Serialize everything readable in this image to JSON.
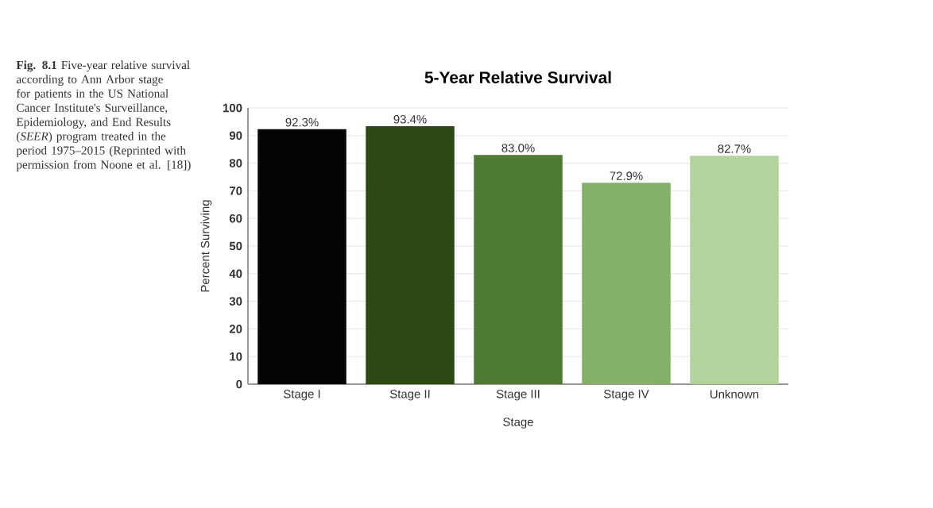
{
  "chart_data": {
    "type": "bar",
    "title": "5-Year Relative Survival",
    "xlabel": "Stage",
    "ylabel": "Percent Surviving",
    "categories": [
      "Stage I",
      "Stage II",
      "Stage III",
      "Stage IV",
      "Unknown"
    ],
    "values": [
      92.3,
      93.4,
      83.0,
      72.9,
      82.7
    ],
    "value_labels": [
      "92.3%",
      "93.4%",
      "83.0%",
      "72.9%",
      "82.7%"
    ],
    "colors": [
      "#050505",
      "#2d4a14",
      "#4e7a34",
      "#85b068",
      "#b3d39c"
    ],
    "ylim": [
      0,
      100
    ],
    "yticks": [
      0,
      10,
      20,
      30,
      40,
      50,
      60,
      70,
      80,
      90,
      100
    ],
    "grid": "y",
    "annotations": [
      "**Fig. 8.1** Five-year relative survival according to Ann Arbor stage for patients in the US National Cancer Institute's Surveillance, Epidemiology, and End Results (*SEER*) program treated in the period 1975–2015 (Reprinted with permission from Noone et al. [18])"
    ]
  }
}
